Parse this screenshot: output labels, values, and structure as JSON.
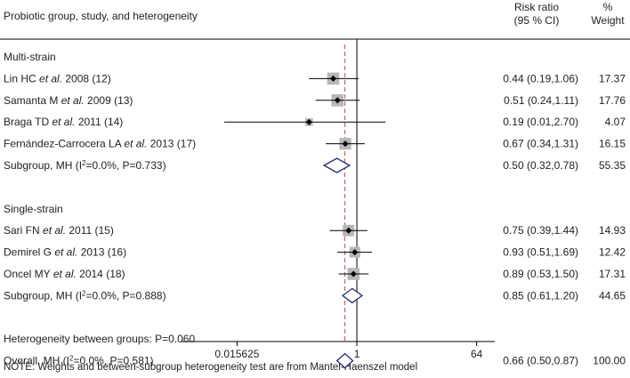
{
  "header": {
    "col1": "Probiotic group, study, and heterogeneity",
    "rr_line1": "Risk ratio",
    "rr_line2": "(95 % CI)",
    "w_line1": "%",
    "w_line2": "Weight"
  },
  "footnote": "NOTE: Weights and between-subgroup heterogeneity test are from Mantel-Haenszel model",
  "chart_data": {
    "type": "forest",
    "xscale": "log2",
    "xlim": [
      0.0022,
      120
    ],
    "xticks": [
      {
        "value": 0.015625,
        "label": "0.015625"
      },
      {
        "value": 1,
        "label": "1"
      },
      {
        "value": 64,
        "label": "64"
      }
    ],
    "null_line": 1,
    "overall_line": 0.66,
    "rows": [
      {
        "kind": "header",
        "parts": [
          {
            "t": "Multi-strain"
          }
        ]
      },
      {
        "kind": "study",
        "parts": [
          {
            "t": "Lin HC "
          },
          {
            "t": "et al.",
            "i": true
          },
          {
            "t": " 2008 (12)"
          }
        ],
        "rr": 0.44,
        "lo": 0.19,
        "hi": 1.06,
        "est": "0.44 (0.19,1.06)",
        "weight": "17.37",
        "w": 17.37
      },
      {
        "kind": "study",
        "parts": [
          {
            "t": "Samanta M "
          },
          {
            "t": "et al.",
            "i": true
          },
          {
            "t": " 2009 (13)"
          }
        ],
        "rr": 0.51,
        "lo": 0.24,
        "hi": 1.11,
        "est": "0.51 (0.24,1.11)",
        "weight": "17.76",
        "w": 17.76
      },
      {
        "kind": "study",
        "parts": [
          {
            "t": "Braga TD "
          },
          {
            "t": "et al.",
            "i": true
          },
          {
            "t": " 2011 (14)"
          }
        ],
        "rr": 0.19,
        "lo": 0.01,
        "hi": 2.7,
        "est": "0.19 (0.01,2.70)",
        "weight": "4.07",
        "w": 4.07
      },
      {
        "kind": "study",
        "parts": [
          {
            "t": "Fernández-Carrocera LA "
          },
          {
            "t": "et al.",
            "i": true
          },
          {
            "t": " 2013 (17)"
          }
        ],
        "rr": 0.67,
        "lo": 0.34,
        "hi": 1.31,
        "est": "0.67 (0.34,1.31)",
        "weight": "16.15",
        "w": 16.15
      },
      {
        "kind": "summary",
        "parts": [
          {
            "t": "Subgroup, MH (I"
          },
          {
            "t": "2",
            "sup": true
          },
          {
            "t": "=0.0%, P=0.733)"
          }
        ],
        "rr": 0.5,
        "lo": 0.32,
        "hi": 0.78,
        "est": "0.50 (0.32,0.78)",
        "weight": "55.35"
      },
      {
        "kind": "blank"
      },
      {
        "kind": "header",
        "parts": [
          {
            "t": "Single-strain"
          }
        ]
      },
      {
        "kind": "study",
        "parts": [
          {
            "t": "Sari FN "
          },
          {
            "t": "et al.",
            "i": true
          },
          {
            "t": " 2011 (15)"
          }
        ],
        "rr": 0.75,
        "lo": 0.39,
        "hi": 1.44,
        "est": "0.75 (0.39,1.44)",
        "weight": "14.93",
        "w": 14.93
      },
      {
        "kind": "study",
        "parts": [
          {
            "t": "Demirel G "
          },
          {
            "t": "et al.",
            "i": true
          },
          {
            "t": " 2013 (16)"
          }
        ],
        "rr": 0.93,
        "lo": 0.51,
        "hi": 1.69,
        "est": "0.93 (0.51,1.69)",
        "weight": "12.42",
        "w": 12.42
      },
      {
        "kind": "study",
        "parts": [
          {
            "t": "Oncel MY "
          },
          {
            "t": "et al.",
            "i": true
          },
          {
            "t": " 2014 (18)"
          }
        ],
        "rr": 0.89,
        "lo": 0.53,
        "hi": 1.5,
        "est": "0.89 (0.53,1.50)",
        "weight": "17.31",
        "w": 17.31
      },
      {
        "kind": "summary",
        "parts": [
          {
            "t": "Subgroup, MH (I"
          },
          {
            "t": "2",
            "sup": true
          },
          {
            "t": "=0.0%, P=0.888)"
          }
        ],
        "rr": 0.85,
        "lo": 0.61,
        "hi": 1.2,
        "est": "0.85 (0.61,1.20)",
        "weight": "44.65"
      },
      {
        "kind": "blank"
      },
      {
        "kind": "header",
        "parts": [
          {
            "t": "Heterogeneity between groups: P=0.060"
          }
        ]
      },
      {
        "kind": "summary",
        "parts": [
          {
            "t": "Overall, MH (I"
          },
          {
            "t": "2",
            "sup": true
          },
          {
            "t": "=0.0%, P=0.581)"
          }
        ],
        "rr": 0.66,
        "lo": 0.5,
        "hi": 0.87,
        "est": "0.66 (0.50,0.87)",
        "weight": "100.00"
      }
    ],
    "colors": {
      "ci_line": "#000000",
      "weight_box": "#b7b7b7",
      "diamond": "#1f2a80",
      "overall_line": "#c0504d",
      "null_line": "#000000"
    }
  }
}
